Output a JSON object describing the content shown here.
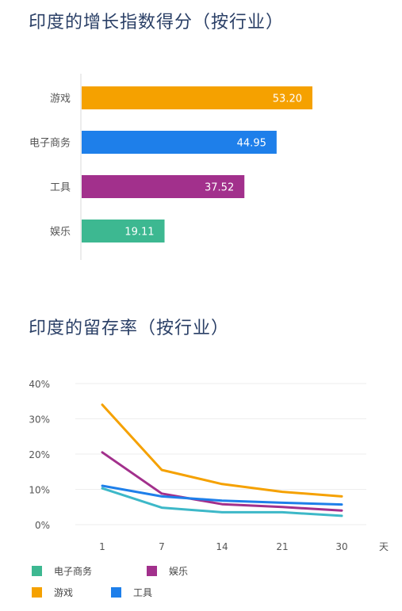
{
  "chart_data": [
    {
      "type": "bar",
      "orientation": "horizontal",
      "title": "印度的增长指数得分（按行业）",
      "categories": [
        "游戏",
        "电子商务",
        "工具",
        "娱乐"
      ],
      "values": [
        53.2,
        44.95,
        37.52,
        19.11
      ],
      "value_labels": [
        "53.20",
        "44.95",
        "37.52",
        "19.11"
      ],
      "colors": [
        "#F5A100",
        "#1E7FEA",
        "#A2308C",
        "#3DB891"
      ],
      "xlim": [
        0,
        53.2
      ]
    },
    {
      "type": "line",
      "title": "印度的留存率（按行业）",
      "x": [
        1,
        7,
        14,
        21,
        30
      ],
      "x_tick_labels": [
        "1",
        "7",
        "14",
        "21",
        "30"
      ],
      "xlabel": "天",
      "y_tick_labels": [
        "40%",
        "30%",
        "20%",
        "10%",
        "0%"
      ],
      "ylim": [
        0,
        40
      ],
      "grid": true,
      "legend_position": "bottom",
      "series": [
        {
          "name": "电子商务",
          "color": "#3DB8C8",
          "values": [
            10.3,
            4.8,
            3.5,
            3.5,
            2.5
          ]
        },
        {
          "name": "娱乐",
          "color": "#A2308C",
          "values": [
            20.5,
            8.8,
            5.8,
            5.0,
            4.0
          ]
        },
        {
          "name": "游戏",
          "color": "#F5A100",
          "values": [
            34.0,
            15.5,
            11.5,
            9.3,
            8.0
          ]
        },
        {
          "name": "工具",
          "color": "#1E7FEA",
          "values": [
            11.0,
            8.0,
            6.8,
            6.2,
            5.7
          ]
        }
      ],
      "legend": [
        {
          "name": "电子商务",
          "color": "#3DB891"
        },
        {
          "name": "娱乐",
          "color": "#A2308C"
        },
        {
          "name": "游戏",
          "color": "#F5A100"
        },
        {
          "name": "工具",
          "color": "#1E7FEA"
        }
      ]
    }
  ]
}
